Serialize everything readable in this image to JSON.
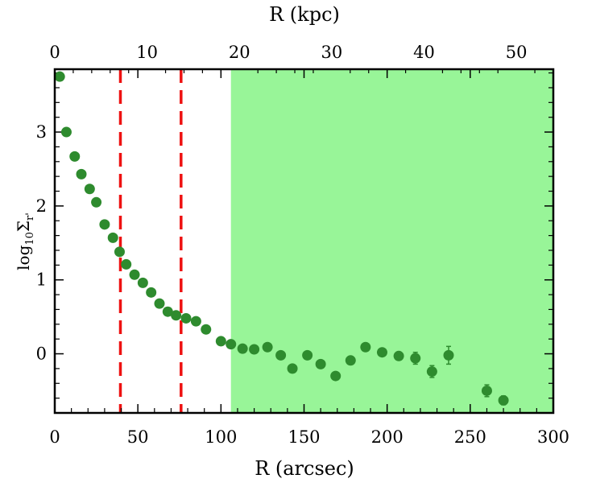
{
  "chart_data": {
    "type": "scatter",
    "xlabel": "R (arcsec)",
    "x2label": "R (kpc)",
    "ylabel": {
      "main": "log",
      "sub1": "10",
      "sym": "Σ",
      "sub2": "r'"
    },
    "xlim": [
      0,
      300
    ],
    "ylim": [
      -0.8,
      3.85
    ],
    "x2lim": [
      0,
      54
    ],
    "x_ticks": [
      "0",
      "50",
      "100",
      "150",
      "200",
      "250",
      "300"
    ],
    "x2_ticks": [
      "0",
      "10",
      "20",
      "30",
      "40",
      "50"
    ],
    "y_ticks": [
      "0",
      "1",
      "2",
      "3"
    ],
    "marker_color": "#2e8b2e",
    "shade_color": "#98f598",
    "line_color": "#ee1111",
    "shaded_region": [
      106,
      300
    ],
    "vlines": [
      39.5,
      76
    ],
    "series": [
      {
        "x": [
          3,
          7,
          12,
          16,
          21,
          25,
          30,
          35,
          39,
          43,
          48,
          53,
          58,
          63,
          68,
          73,
          79,
          85,
          91,
          100,
          106,
          113,
          120,
          128,
          136,
          143,
          152,
          160,
          169,
          178,
          187,
          197,
          207,
          217,
          227,
          237,
          260,
          270
        ],
        "y": [
          3.75,
          3.0,
          2.67,
          2.43,
          2.23,
          2.05,
          1.75,
          1.57,
          1.38,
          1.21,
          1.07,
          0.96,
          0.83,
          0.68,
          0.57,
          0.52,
          0.48,
          0.44,
          0.33,
          0.17,
          0.13,
          0.07,
          0.06,
          0.09,
          -0.02,
          -0.2,
          -0.02,
          -0.14,
          -0.3,
          -0.09,
          0.09,
          0.02,
          -0.03,
          -0.06,
          -0.24,
          -0.02,
          -0.5,
          -0.63
        ],
        "err": [
          0,
          0,
          0,
          0,
          0,
          0,
          0,
          0,
          0,
          0,
          0,
          0,
          0,
          0,
          0,
          0,
          0,
          0,
          0,
          0,
          0,
          0,
          0,
          0,
          0,
          0,
          0,
          0,
          0,
          0,
          0,
          0,
          0.05,
          0.08,
          0.08,
          0.12,
          0.08,
          0.06
        ]
      }
    ]
  }
}
